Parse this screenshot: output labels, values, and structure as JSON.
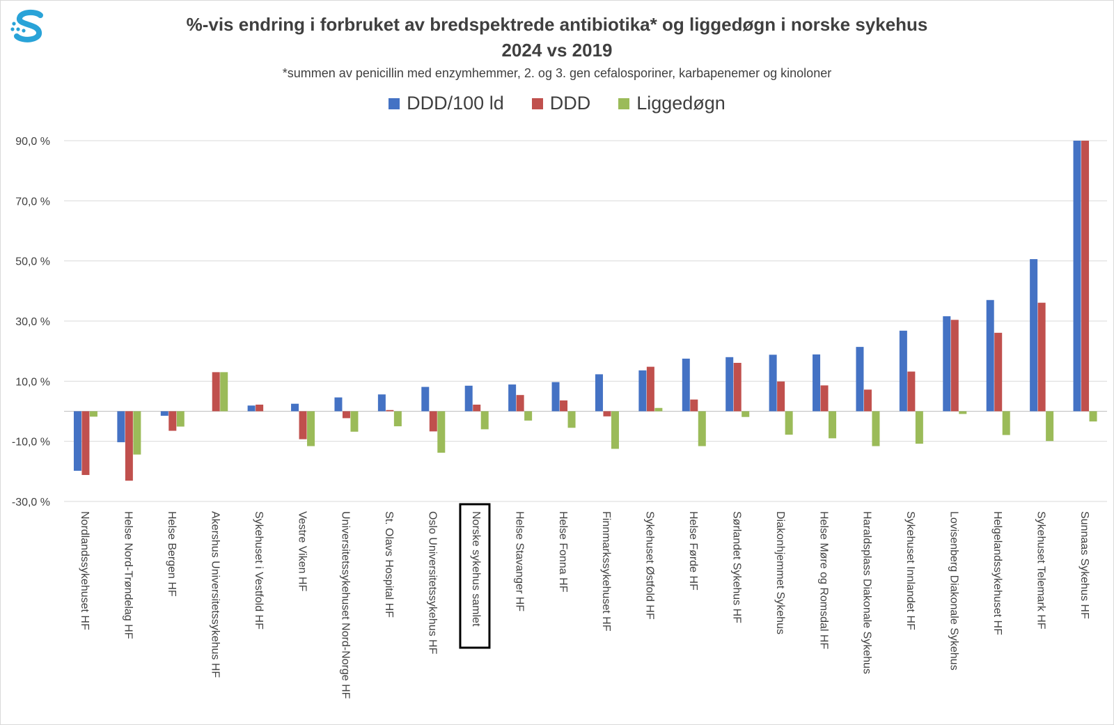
{
  "colors": {
    "ddd_per_100": "#4472c4",
    "ddd": "#c0504d",
    "liggedogn": "#9bbb59",
    "grid": "#d9d9d9",
    "logo": "#29a3d8"
  },
  "logo": {
    "icon": "letter-s-logo-icon"
  },
  "chart_data": {
    "type": "bar",
    "title": "%-vis endring i forbruket av bredspektrede antibiotika* og liggedøgn i norske sykehus",
    "title_line2": "2024 vs 2019",
    "subtitle": "*summen av penicillin med enzymhemmer, 2. og 3. gen cefalosporiner, karbapenemer og kinoloner",
    "legend_position": "top",
    "grid": true,
    "ylim": [
      -30,
      90
    ],
    "yticks": [
      90,
      70,
      50,
      30,
      10,
      -10,
      -30
    ],
    "ytick_labels": [
      "90,0 %",
      "70,0 %",
      "50,0 %",
      "30,0 %",
      "10,0 %",
      "-10,0 %",
      "-30,0 %"
    ],
    "categories": [
      "Nordlandssykehuset HF",
      "Helse Nord-Trøndelag HF",
      "Helse Bergen HF",
      "Akershus Universitetssykehus HF",
      "Sykehuset i Vestfold HF",
      "Vestre Viken HF",
      "Universitetssykehuset Nord-Norge HF",
      "St. Olavs Hospital HF",
      "Oslo Universitetssykehus HF",
      "Norske sykehus samlet",
      "Helse Stavanger HF",
      "Helse Fonna HF",
      "Finnmarkssykehuset HF",
      "Sykehuset Østfold HF",
      "Helse Førde HF",
      "Sørlandet Sykehus HF",
      "Diakonhjemmet Sykehus",
      "Helse Møre og Romsdal HF",
      "Haraldsplass Diakonale Sykehus",
      "Sykehuset Innlandet HF",
      "Lovisenberg Diakonale Sykehus",
      "Helgelandssykehuset HF",
      "Sykehuset Telemark HF",
      "Sunnaas Sykehus HF"
    ],
    "highlighted_category": "Norske sykehus samlet",
    "series": [
      {
        "name": "DDD/100 ld",
        "values": [
          -19.8,
          -10.3,
          -1.5,
          0,
          1.9,
          2.5,
          4.6,
          5.6,
          8.1,
          8.5,
          8.9,
          9.7,
          12.3,
          13.6,
          17.5,
          18.0,
          18.8,
          18.9,
          21.4,
          26.8,
          31.6,
          37.0,
          50.6,
          90.0
        ]
      },
      {
        "name": "DDD",
        "values": [
          -21.2,
          -23.1,
          -6.5,
          13.0,
          2.2,
          -9.3,
          -2.3,
          0.4,
          -6.7,
          2.2,
          5.4,
          3.6,
          -1.7,
          14.8,
          3.9,
          16.1,
          9.9,
          8.6,
          7.2,
          13.2,
          30.4,
          26.1,
          36.1,
          90.0
        ]
      },
      {
        "name": "Liggedøgn",
        "values": [
          -1.8,
          -14.4,
          -5.1,
          13.0,
          0,
          -11.6,
          -6.8,
          -5.0,
          -13.8,
          -6.0,
          -3.1,
          -5.5,
          -12.5,
          1.1,
          -11.6,
          -1.9,
          -7.8,
          -9.0,
          -11.6,
          -10.8,
          -0.9,
          -7.9,
          -9.9,
          -3.4
        ]
      }
    ]
  }
}
